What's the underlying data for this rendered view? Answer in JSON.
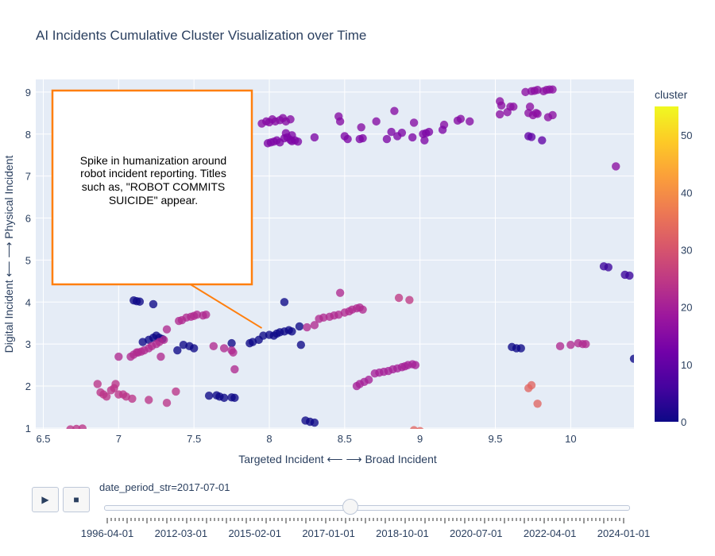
{
  "chart_data": {
    "type": "scatter",
    "title": "AI Incidents Cumulative Cluster Visualization over Time",
    "xlabel": "Targeted Incident ⟵ ⟶ Broad Incident",
    "ylabel": "Digital Incident ⟵ ⟶ Physical Incident",
    "xlim": [
      6.45,
      10.42
    ],
    "ylim": [
      0.98,
      9.3
    ],
    "x_ticks": [
      "6.5",
      "7",
      "7.5",
      "8",
      "8.5",
      "9",
      "9.5",
      "10"
    ],
    "y_ticks": [
      "1",
      "2",
      "3",
      "4",
      "5",
      "6",
      "7",
      "8",
      "9"
    ],
    "grid": true,
    "colorbar": {
      "title": "cluster",
      "range": [
        0,
        55
      ],
      "ticks": [
        "0",
        "10",
        "20",
        "30",
        "40",
        "50"
      ],
      "colorscale": [
        "#0d0887",
        "#46039f",
        "#7201a8",
        "#9c179e",
        "#bd3786",
        "#d8576b",
        "#ed7953",
        "#fb9f3a",
        "#fdca26",
        "#f0f921"
      ]
    },
    "clusters": [
      {
        "cluster": 15,
        "points": [
          [
            7.95,
            8.25
          ],
          [
            7.98,
            8.3
          ],
          [
            8.0,
            8.28
          ],
          [
            8.02,
            8.35
          ],
          [
            8.04,
            8.3
          ],
          [
            8.07,
            8.33
          ],
          [
            8.09,
            8.38
          ],
          [
            8.11,
            8.3
          ],
          [
            8.14,
            8.35
          ],
          [
            8.46,
            8.42
          ],
          [
            8.47,
            8.3
          ],
          [
            8.61,
            8.16
          ],
          [
            8.71,
            8.3
          ],
          [
            8.83,
            8.55
          ],
          [
            8.96,
            8.27
          ],
          [
            9.16,
            8.22
          ],
          [
            9.25,
            8.32
          ],
          [
            9.27,
            8.36
          ],
          [
            9.33,
            8.3
          ]
        ]
      },
      {
        "cluster": 14,
        "points": [
          [
            7.99,
            7.78
          ],
          [
            8.01,
            7.8
          ],
          [
            8.03,
            7.82
          ],
          [
            8.05,
            7.85
          ],
          [
            8.07,
            7.8
          ],
          [
            8.1,
            7.9
          ],
          [
            8.12,
            7.92
          ],
          [
            8.14,
            7.86
          ],
          [
            8.15,
            7.83
          ],
          [
            8.17,
            7.85
          ],
          [
            8.19,
            7.82
          ],
          [
            8.11,
            8.02
          ],
          [
            8.15,
            7.97
          ],
          [
            8.3,
            7.92
          ],
          [
            8.5,
            7.95
          ],
          [
            8.52,
            7.88
          ],
          [
            8.6,
            7.88
          ],
          [
            8.62,
            7.9
          ],
          [
            8.78,
            7.88
          ],
          [
            8.81,
            8.05
          ],
          [
            8.85,
            7.95
          ],
          [
            8.88,
            8.03
          ],
          [
            8.95,
            7.92
          ],
          [
            9.02,
            8.0
          ],
          [
            9.04,
            8.02
          ],
          [
            9.06,
            8.05
          ],
          [
            9.03,
            7.85
          ],
          [
            9.15,
            8.1
          ]
        ]
      },
      {
        "cluster": 16,
        "points": [
          [
            9.53,
            8.47
          ],
          [
            9.53,
            8.78
          ],
          [
            9.54,
            8.68
          ],
          [
            9.58,
            8.52
          ],
          [
            9.6,
            8.65
          ],
          [
            9.62,
            8.65
          ],
          [
            9.7,
            9.0
          ],
          [
            9.74,
            9.02
          ],
          [
            9.76,
            9.03
          ],
          [
            9.78,
            9.05
          ],
          [
            9.82,
            9.02
          ],
          [
            9.84,
            9.05
          ],
          [
            9.86,
            9.06
          ],
          [
            9.88,
            9.06
          ],
          [
            9.72,
            8.5
          ],
          [
            9.75,
            8.45
          ],
          [
            9.73,
            8.65
          ],
          [
            9.77,
            8.5
          ],
          [
            9.78,
            8.48
          ],
          [
            9.85,
            8.4
          ],
          [
            9.88,
            8.45
          ],
          [
            10.3,
            7.23
          ]
        ]
      },
      {
        "cluster": 10,
        "points": [
          [
            9.72,
            7.95
          ],
          [
            9.74,
            7.93
          ],
          [
            9.81,
            7.85
          ]
        ]
      },
      {
        "cluster": 5,
        "points": [
          [
            10.22,
            4.85
          ],
          [
            10.25,
            4.83
          ],
          [
            10.36,
            4.65
          ],
          [
            10.39,
            4.63
          ]
        ]
      },
      {
        "cluster": 0,
        "points": [
          [
            7.1,
            4.04
          ],
          [
            7.12,
            4.02
          ],
          [
            7.14,
            4.01
          ],
          [
            7.23,
            3.95
          ],
          [
            8.1,
            4.0
          ],
          [
            7.16,
            3.05
          ],
          [
            7.2,
            3.1
          ],
          [
            7.23,
            3.15
          ],
          [
            7.25,
            3.2
          ],
          [
            7.27,
            3.15
          ],
          [
            7.29,
            3.12
          ],
          [
            7.39,
            2.85
          ],
          [
            7.43,
            2.98
          ],
          [
            7.47,
            2.95
          ],
          [
            7.5,
            2.9
          ],
          [
            7.75,
            3.02
          ],
          [
            7.87,
            3.02
          ],
          [
            7.89,
            3.05
          ],
          [
            7.93,
            3.1
          ],
          [
            7.96,
            3.2
          ],
          [
            8.0,
            3.22
          ],
          [
            8.03,
            3.2
          ],
          [
            8.05,
            3.25
          ],
          [
            8.07,
            3.28
          ],
          [
            8.1,
            3.3
          ],
          [
            8.13,
            3.33
          ],
          [
            8.15,
            3.3
          ],
          [
            8.2,
            3.42
          ],
          [
            8.21,
            2.98
          ],
          [
            7.6,
            1.77
          ],
          [
            7.65,
            1.78
          ],
          [
            7.67,
            1.75
          ],
          [
            7.7,
            1.72
          ],
          [
            7.75,
            1.73
          ],
          [
            7.77,
            1.72
          ],
          [
            8.24,
            1.18
          ],
          [
            8.27,
            1.15
          ],
          [
            8.3,
            1.13
          ],
          [
            9.61,
            2.93
          ],
          [
            9.64,
            2.9
          ],
          [
            9.67,
            2.9
          ],
          [
            10.42,
            2.65
          ]
        ]
      },
      {
        "cluster": 22,
        "points": [
          [
            7.08,
            2.7
          ],
          [
            7.1,
            2.75
          ],
          [
            7.12,
            2.8
          ],
          [
            7.15,
            2.82
          ],
          [
            7.17,
            2.85
          ],
          [
            7.2,
            2.9
          ],
          [
            7.22,
            2.95
          ],
          [
            7.25,
            3.0
          ],
          [
            7.27,
            3.05
          ],
          [
            7.3,
            3.1
          ],
          [
            7.32,
            3.35
          ],
          [
            7.4,
            3.55
          ],
          [
            7.42,
            3.57
          ],
          [
            7.45,
            3.63
          ],
          [
            7.48,
            3.65
          ],
          [
            7.5,
            3.67
          ],
          [
            7.52,
            3.7
          ],
          [
            7.56,
            3.68
          ],
          [
            7.58,
            3.7
          ],
          [
            8.33,
            3.6
          ],
          [
            8.36,
            3.63
          ],
          [
            8.4,
            3.65
          ],
          [
            8.43,
            3.68
          ],
          [
            8.46,
            3.7
          ],
          [
            8.5,
            3.75
          ],
          [
            8.53,
            3.78
          ],
          [
            8.55,
            3.82
          ],
          [
            8.58,
            3.85
          ],
          [
            8.6,
            3.87
          ],
          [
            8.62,
            3.82
          ],
          [
            8.47,
            4.22
          ],
          [
            7.0,
            2.7
          ],
          [
            7.13,
            2.8
          ],
          [
            7.28,
            2.7
          ],
          [
            7.63,
            2.95
          ],
          [
            7.7,
            2.9
          ],
          [
            7.75,
            2.85
          ],
          [
            7.76,
            2.8
          ],
          [
            7.77,
            2.4
          ],
          [
            8.3,
            3.45
          ],
          [
            8.25,
            3.4
          ],
          [
            9.93,
            2.95
          ],
          [
            10.0,
            2.98
          ],
          [
            10.05,
            3.02
          ],
          [
            10.08,
            3.0
          ],
          [
            10.1,
            3.0
          ]
        ]
      },
      {
        "cluster": 25,
        "points": [
          [
            8.86,
            4.1
          ],
          [
            8.93,
            4.05
          ]
        ]
      },
      {
        "cluster": 20,
        "points": [
          [
            8.58,
            2.0
          ],
          [
            8.6,
            2.05
          ],
          [
            8.63,
            2.1
          ],
          [
            8.66,
            2.15
          ],
          [
            8.7,
            2.3
          ],
          [
            8.73,
            2.32
          ],
          [
            8.76,
            2.34
          ],
          [
            8.79,
            2.36
          ],
          [
            8.82,
            2.4
          ],
          [
            8.85,
            2.42
          ],
          [
            8.88,
            2.45
          ],
          [
            8.9,
            2.47
          ],
          [
            8.92,
            2.5
          ],
          [
            8.95,
            2.52
          ],
          [
            8.97,
            2.5
          ]
        ]
      },
      {
        "cluster": 24,
        "points": [
          [
            6.86,
            2.05
          ],
          [
            6.88,
            1.85
          ],
          [
            6.9,
            1.8
          ],
          [
            6.92,
            1.75
          ],
          [
            6.95,
            1.9
          ],
          [
            6.97,
            1.95
          ],
          [
            7.0,
            1.8
          ],
          [
            7.05,
            1.75
          ],
          [
            7.09,
            1.7
          ],
          [
            7.2,
            1.67
          ],
          [
            7.32,
            1.6
          ],
          [
            7.38,
            1.87
          ],
          [
            6.68,
            0.97
          ],
          [
            6.72,
            0.98
          ],
          [
            6.76,
            0.99
          ],
          [
            6.98,
            2.05
          ],
          [
            7.03,
            1.8
          ]
        ]
      },
      {
        "cluster": 33,
        "points": [
          [
            9.72,
            1.95
          ],
          [
            9.74,
            2.02
          ],
          [
            9.78,
            1.58
          ],
          [
            8.96,
            0.95
          ],
          [
            9.0,
            0.93
          ]
        ]
      }
    ],
    "annotation": {
      "text_lines": [
        "Spike in humanization around",
        "robot incident reporting. Titles",
        "such as, \"ROBOT COMMITS",
        "SUICIDE\" appear."
      ],
      "border_color": "#ff7f0e",
      "points_to": [
        7.95,
        3.38
      ]
    }
  },
  "controls": {
    "play_icon": "▶",
    "stop_icon": "■",
    "slider_label": "date_period_str=2017-07-01",
    "slider_value_fraction": 0.47,
    "slider_tick_labels": [
      "1996-04-01",
      "2012-03-01",
      "2015-02-01",
      "2017-01-01",
      "2018-10-01",
      "2020-07-01",
      "2022-04-01",
      "2024-01-01"
    ]
  }
}
